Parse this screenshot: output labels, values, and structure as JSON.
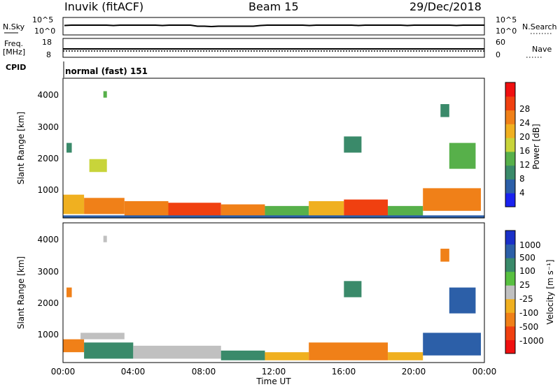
{
  "header": {
    "station": "Inuvik (fitACF)",
    "beam": "Beam 15",
    "date": "29/Dec/2018"
  },
  "info_panels": {
    "nsky_label": "N.Sky",
    "nsky_ticks": [
      "10^5",
      "10^0"
    ],
    "nsearch_label": "N.Search",
    "nsearch_ticks": [
      "10^5",
      "10^0"
    ],
    "freq_label_1": "Freq.",
    "freq_label_2": "[MHz]",
    "freq_ticks": [
      "18",
      "8"
    ],
    "nave_label": "Nave",
    "nave_ticks": [
      "60",
      "0"
    ],
    "cpid_label": "CPID",
    "cpid_value": "normal (fast) 151"
  },
  "axes": {
    "range_label": "Slant Range [km]",
    "range_ticks": [
      "1000",
      "2000",
      "3000",
      "4000"
    ],
    "time_ticks": [
      "00:00",
      "04:00",
      "08:00",
      "12:00",
      "16:00",
      "20:00",
      "00:00"
    ],
    "time_label": "Time UT"
  },
  "colorbars": {
    "power": {
      "label": "Power [dB]",
      "ticks": [
        "4",
        "8",
        "12",
        "16",
        "20",
        "24",
        "28"
      ],
      "colors": [
        "#1a22f0",
        "#2c5fa8",
        "#3a8a6a",
        "#57b04a",
        "#c8d43a",
        "#f0b020",
        "#f08018",
        "#f04010",
        "#f01010"
      ]
    },
    "velocity": {
      "label": "Velocity [m s⁻¹]",
      "ticks": [
        "1000",
        "500",
        "100",
        "25",
        "-25",
        "-100",
        "-500",
        "-1000"
      ],
      "colors": [
        "#1a30c8",
        "#2c5fa8",
        "#3a8a6a",
        "#58c040",
        "#c0c0c0",
        "#f0b020",
        "#f08018",
        "#f04010",
        "#f01010"
      ]
    }
  },
  "chart_data": {
    "type": "heatmap",
    "x_unit": "hours UT",
    "xlim": [
      0,
      24
    ],
    "ylim": [
      180,
      4500
    ],
    "panels": [
      {
        "name": "power",
        "blocks": [
          {
            "t0": 0,
            "t1": 1.2,
            "r0": 300,
            "r1": 900,
            "v": 20
          },
          {
            "t0": 1.2,
            "t1": 3.5,
            "r0": 300,
            "r1": 800,
            "v": 22
          },
          {
            "t0": 3.5,
            "t1": 6,
            "r0": 250,
            "r1": 700,
            "v": 24
          },
          {
            "t0": 6,
            "t1": 9,
            "r0": 250,
            "r1": 650,
            "v": 26
          },
          {
            "t0": 9,
            "t1": 11.5,
            "r0": 250,
            "r1": 600,
            "v": 24
          },
          {
            "t0": 11.5,
            "t1": 14,
            "r0": 250,
            "r1": 550,
            "v": 14
          },
          {
            "t0": 14,
            "t1": 16,
            "r0": 250,
            "r1": 700,
            "v": 20
          },
          {
            "t0": 16,
            "t1": 18.5,
            "r0": 250,
            "r1": 750,
            "v": 26
          },
          {
            "t0": 18.5,
            "t1": 20.5,
            "r0": 250,
            "r1": 550,
            "v": 12
          },
          {
            "t0": 20.5,
            "t1": 23.8,
            "r0": 400,
            "r1": 1100,
            "v": 24
          },
          {
            "t0": 0,
            "t1": 24,
            "r0": 190,
            "r1": 260,
            "v": 6
          },
          {
            "t0": 0.2,
            "t1": 0.5,
            "r0": 2200,
            "r1": 2500,
            "v": 10
          },
          {
            "t0": 2.3,
            "t1": 2.5,
            "r0": 3900,
            "r1": 4100,
            "v": 14
          },
          {
            "t0": 1.5,
            "t1": 2.5,
            "r0": 1600,
            "r1": 2000,
            "v": 16
          },
          {
            "t0": 22,
            "t1": 23.5,
            "r0": 1700,
            "r1": 2500,
            "v": 12
          },
          {
            "t0": 21.5,
            "t1": 22,
            "r0": 3300,
            "r1": 3700,
            "v": 10
          },
          {
            "t0": 16,
            "t1": 17,
            "r0": 2200,
            "r1": 2700,
            "v": 8
          }
        ]
      },
      {
        "name": "velocity",
        "blocks": [
          {
            "t0": 0,
            "t1": 1.2,
            "r0": 500,
            "r1": 900,
            "v": -500
          },
          {
            "t0": 1.2,
            "t1": 4,
            "r0": 300,
            "r1": 800,
            "v": 100
          },
          {
            "t0": 4,
            "t1": 9,
            "r0": 300,
            "r1": 700,
            "v": 0
          },
          {
            "t0": 9,
            "t1": 11.5,
            "r0": 250,
            "r1": 550,
            "v": 100
          },
          {
            "t0": 11.5,
            "t1": 14,
            "r0": 250,
            "r1": 500,
            "v": -100
          },
          {
            "t0": 14,
            "t1": 18.5,
            "r0": 250,
            "r1": 800,
            "v": -500
          },
          {
            "t0": 18.5,
            "t1": 20.5,
            "r0": 250,
            "r1": 500,
            "v": -100
          },
          {
            "t0": 20.5,
            "t1": 23.8,
            "r0": 400,
            "r1": 1100,
            "v": 500
          },
          {
            "t0": 1.0,
            "t1": 3.5,
            "r0": 900,
            "r1": 1100,
            "v": 0
          },
          {
            "t0": 0.2,
            "t1": 0.5,
            "r0": 2200,
            "r1": 2500,
            "v": -500
          },
          {
            "t0": 2.3,
            "t1": 2.5,
            "r0": 3900,
            "r1": 4100,
            "v": 0
          },
          {
            "t0": 22,
            "t1": 23.5,
            "r0": 1700,
            "r1": 2500,
            "v": 500
          },
          {
            "t0": 21.5,
            "t1": 22,
            "r0": 3300,
            "r1": 3700,
            "v": -500
          },
          {
            "t0": 16,
            "t1": 17,
            "r0": 2200,
            "r1": 2700,
            "v": 100
          }
        ]
      }
    ]
  }
}
